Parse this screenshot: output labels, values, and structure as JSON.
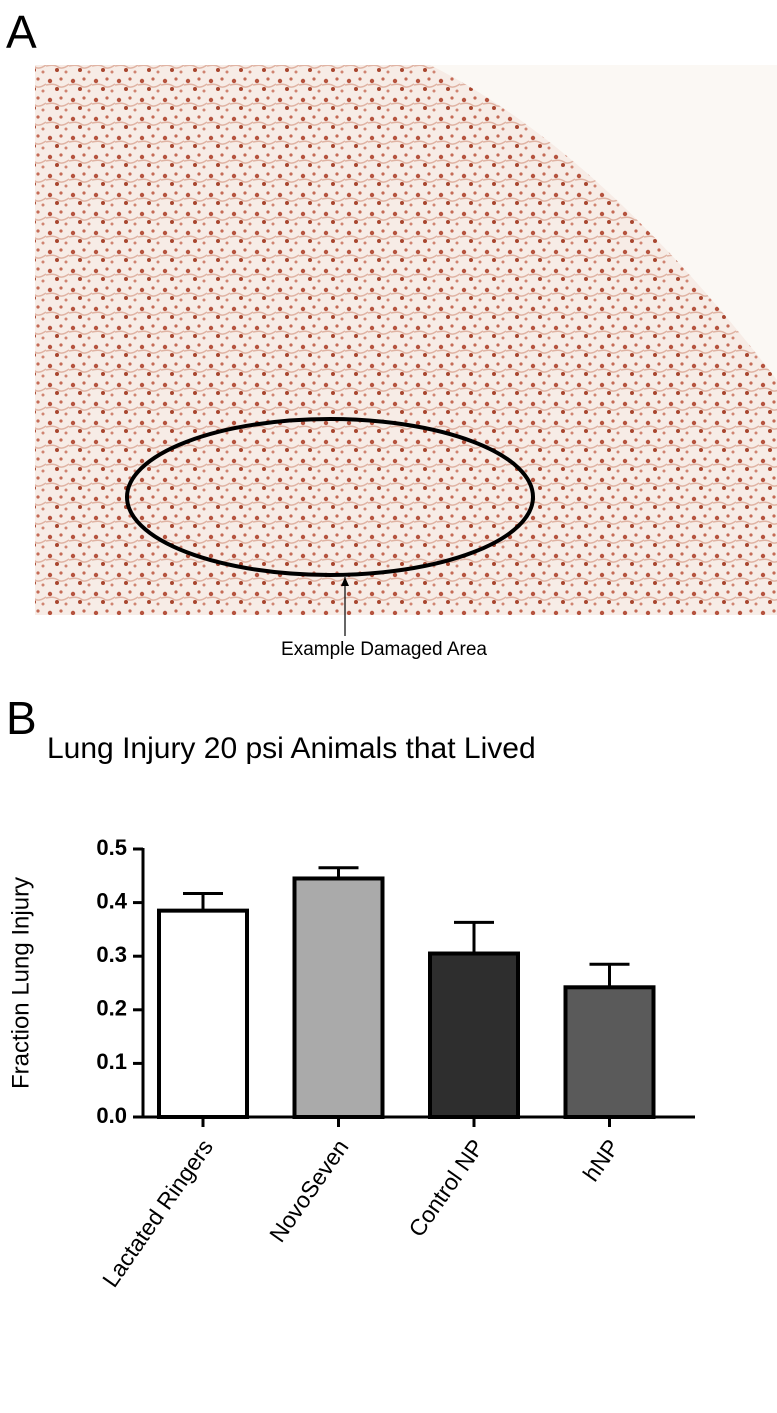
{
  "panel_labels": [
    "A",
    "B"
  ],
  "image_annotation": "Example Damaged Area",
  "chart_data": {
    "type": "bar",
    "title": "Lung Injury 20 psi Animals that Lived",
    "y_label": "Fraction Lung Injury",
    "categories": [
      "Lactated Ringers",
      "NovoSeven",
      "Control NP",
      "hNP"
    ],
    "values": [
      0.385,
      0.445,
      0.305,
      0.242
    ],
    "errors": [
      0.032,
      0.02,
      0.058,
      0.043
    ],
    "colors": [
      "#ffffff",
      "#aaaaaa",
      "#2e2e2e",
      "#5a5a5a"
    ],
    "ylim": [
      0,
      0.5
    ],
    "yticks": [
      {
        "value": 0,
        "label": "0.0"
      },
      0.1,
      0.2,
      0.3,
      0.4,
      0.5
    ]
  }
}
